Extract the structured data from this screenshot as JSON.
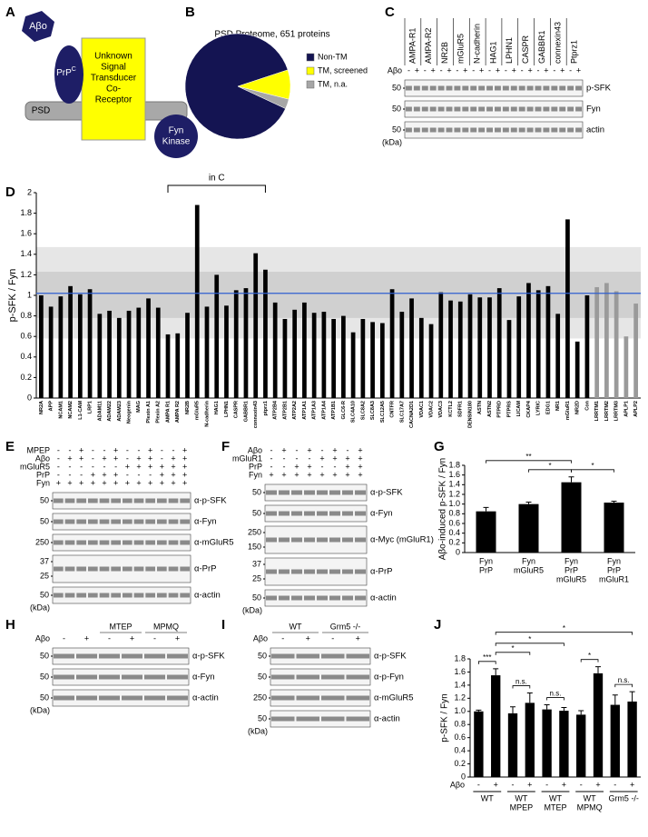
{
  "panel_labels": [
    "A",
    "B",
    "C",
    "D",
    "E",
    "F",
    "G",
    "H",
    "I",
    "J"
  ],
  "diagram": {
    "abo": "Aβo",
    "prp": "PrP",
    "prp_sup": "C",
    "receptor": [
      "Unknown",
      "Signal",
      "Transducer",
      "Co-",
      "Receptor"
    ],
    "psd": "PSD",
    "fyn": [
      "Fyn",
      "Kinase"
    ]
  },
  "chart_data": [
    {
      "type": "pie",
      "title": "PSD Proteome, 651 proteins",
      "categories": [
        "Non-TM",
        "TM, screened",
        "TM, n.a."
      ],
      "values": [
        88,
        9,
        3
      ],
      "colors": [
        "#141452",
        "#ffff00",
        "#a6a6a6"
      ]
    },
    {
      "type": "bar",
      "y_label": "p-SFK / Fyn",
      "categories": [
        "NR2A",
        "APP",
        "NCAM1",
        "NCAM2",
        "L1-CAM",
        "LRP1",
        "ADAM11",
        "ADAM22",
        "ADAM23",
        "Neogenin",
        "MAG",
        "Plexin A1",
        "Plexin A2",
        "AMPA R1",
        "AMPA R2",
        "NR2B",
        "mGluR5",
        "N-cadherin",
        "HAG1",
        "LPHN1",
        "CASPR",
        "GABBR1",
        "connexin43",
        "ptprz1",
        "ATP2B4",
        "ATP2B1",
        "ATP2A2",
        "ATP1A1",
        "ATP1A3",
        "ATP1A4",
        "ATP1B1",
        "GLC6-R",
        "SLC4A10",
        "SLC8A2",
        "SLC8A3",
        "SLC12A5",
        "CNTFR",
        "SLC17A7",
        "CACNA2D1",
        "VDAC1",
        "VDAC2",
        "VDAC3",
        "KCTL2",
        "SDFR1",
        "DENSIN180",
        "ASTN",
        "ASTN2",
        "PTPRD",
        "PTPRS",
        "LICAM",
        "CKAP4",
        "LYRIC",
        "EDG1",
        "NR1",
        "mGluR1",
        "NR2D",
        "Con",
        "LRRTM1",
        "LRRTM2",
        "LRRTM3",
        "APLP1",
        "APLP2"
      ],
      "values": [
        1.0,
        0.89,
        0.99,
        1.09,
        1.01,
        1.06,
        0.82,
        0.85,
        0.78,
        0.85,
        0.88,
        0.97,
        0.88,
        0.62,
        0.63,
        0.83,
        1.88,
        0.89,
        1.2,
        0.9,
        1.05,
        1.07,
        1.41,
        1.25,
        0.93,
        0.77,
        0.86,
        0.93,
        0.83,
        0.84,
        0.77,
        0.8,
        0.64,
        0.77,
        0.74,
        0.73,
        1.06,
        0.84,
        0.97,
        0.78,
        0.72,
        1.03,
        0.95,
        0.94,
        1.01,
        0.98,
        0.98,
        1.07,
        0.76,
        0.99,
        1.12,
        1.05,
        1.09,
        0.82,
        1.74,
        0.55,
        1.0,
        1.08,
        1.12,
        1.04,
        0.6,
        0.92
      ],
      "colors": [
        "#000000",
        "#000000",
        "#000000",
        "#000000",
        "#000000",
        "#000000",
        "#000000",
        "#000000",
        "#000000",
        "#000000",
        "#000000",
        "#000000",
        "#000000",
        "#000000",
        "#000000",
        "#000000",
        "#000000",
        "#000000",
        "#000000",
        "#000000",
        "#000000",
        "#000000",
        "#000000",
        "#000000",
        "#000000",
        "#000000",
        "#000000",
        "#000000",
        "#000000",
        "#000000",
        "#000000",
        "#000000",
        "#000000",
        "#000000",
        "#000000",
        "#000000",
        "#000000",
        "#000000",
        "#000000",
        "#000000",
        "#000000",
        "#000000",
        "#000000",
        "#000000",
        "#000000",
        "#000000",
        "#000000",
        "#000000",
        "#000000",
        "#000000",
        "#000000",
        "#000000",
        "#000000",
        "#000000",
        "#000000",
        "#000000",
        "#000000",
        "#9a9a9a",
        "#9a9a9a",
        "#9a9a9a",
        "#9a9a9a",
        "#9a9a9a"
      ],
      "ylim": [
        0,
        2
      ],
      "yticks": [
        0,
        0.2,
        0.4,
        0.6,
        0.8,
        1,
        1.2,
        1.4,
        1.6,
        1.8,
        2
      ],
      "bands": [
        {
          "from": 0.58,
          "to": 1.47,
          "color": "#e6e6e6"
        },
        {
          "from": 0.78,
          "to": 1.23,
          "color": "#d0d0d0"
        }
      ],
      "reference_line": 1.02,
      "reference_color": "#2f5fd0",
      "bracket": {
        "label": "in C",
        "from": "AMPA R1",
        "to": "ptprz1"
      }
    },
    {
      "type": "bar",
      "y_label": "Aβo-induced p-SFK / Fyn",
      "categories": [
        [
          "Fyn",
          "PrP"
        ],
        [
          "Fyn",
          "mGluR5"
        ],
        [
          "Fyn",
          "PrP",
          "mGluR5"
        ],
        [
          "Fyn",
          "PrP",
          "mGluR1"
        ]
      ],
      "values": [
        0.85,
        1.0,
        1.45,
        1.03
      ],
      "errors": [
        0.08,
        0.04,
        0.11,
        0.03
      ],
      "color": "#000000",
      "ylim": [
        0,
        1.8
      ],
      "yticks": [
        0,
        0.2,
        0.4,
        0.6,
        0.8,
        {
          "value": 1,
          "label": "1.0"
        },
        1.2,
        1.4,
        1.6,
        1.8
      ],
      "significance": [
        {
          "label": "**",
          "from": 0,
          "to": 2
        },
        {
          "label": "*",
          "from": 1,
          "to": 2
        },
        {
          "label": "*",
          "from": 2,
          "to": 3
        }
      ]
    },
    {
      "type": "bar",
      "y_label": "p-SFK / Fyn",
      "x_label": "Aβo",
      "categories": [
        "-",
        "+",
        "-",
        "+",
        "-",
        "+",
        "-",
        "+",
        "-",
        "+"
      ],
      "values": [
        1.0,
        1.55,
        0.97,
        1.13,
        1.03,
        1.01,
        0.95,
        1.58,
        1.1,
        1.15
      ],
      "errors": [
        0.02,
        0.1,
        0.1,
        0.15,
        0.07,
        0.05,
        0.06,
        0.1,
        0.15,
        0.15
      ],
      "color": "#000000",
      "group_labels": [
        [
          "WT"
        ],
        [
          "WT",
          "MPEP"
        ],
        [
          "WT",
          "MTEP"
        ],
        [
          "WT",
          "MPMQ"
        ],
        [
          "Grm5 -/-"
        ]
      ],
      "ylim": [
        0,
        1.8
      ],
      "yticks": [
        0,
        0.2,
        0.4,
        0.6,
        0.8,
        {
          "value": 1,
          "label": "1.0"
        },
        1.2,
        1.4,
        1.6,
        1.8
      ],
      "significance": [
        {
          "label": "***",
          "from": 0,
          "to": 1
        },
        {
          "label": "*",
          "from": 1,
          "to": 3
        },
        {
          "label": "*",
          "from": 1,
          "to": 5
        },
        {
          "label": "*",
          "from": 1,
          "to": 9
        },
        {
          "label": "*",
          "from": 6,
          "to": 7
        },
        {
          "label": "n.s.",
          "from": 2,
          "to": 3
        },
        {
          "label": "n.s.",
          "from": 4,
          "to": 5
        },
        {
          "label": "n.s.",
          "from": 8,
          "to": 9
        }
      ]
    }
  ],
  "blots": {
    "C": {
      "columns": [
        "AMPA-R1",
        "AMPA-R2",
        "NR2B",
        "mGluR5",
        "N-cadherin",
        "HAG1",
        "LPHN1",
        "CASPR",
        "GABBR1",
        "connexin43",
        "Ptprz1"
      ],
      "rows": [
        {
          "label": "Aβo",
          "signs": [
            "-",
            "+",
            "-",
            "+",
            "-",
            "+",
            "-",
            "+",
            "-",
            "+",
            "-",
            "+",
            "-",
            "+",
            "-",
            "+",
            "-",
            "+",
            "-",
            "+",
            "-",
            "+"
          ]
        }
      ],
      "strips": [
        {
          "label": "p-SFK",
          "markers": [
            "50"
          ]
        },
        {
          "label": "Fyn",
          "markers": [
            "50"
          ]
        },
        {
          "label": "actin",
          "markers": [
            "50"
          ]
        }
      ],
      "unit": "(kDa)"
    },
    "E": {
      "rows": [
        {
          "label": "MPEP",
          "signs": [
            "-",
            "-",
            "+",
            "-",
            "-",
            "+",
            "-",
            "-",
            "+",
            "-",
            "-",
            "+"
          ]
        },
        {
          "label": "Aβo",
          "signs": [
            "-",
            "+",
            "+",
            "-",
            "+",
            "+",
            "-",
            "+",
            "+",
            "-",
            "+",
            "+"
          ]
        },
        {
          "label": "mGluR5",
          "signs": [
            "-",
            "-",
            "-",
            "-",
            "-",
            "-",
            "+",
            "+",
            "+",
            "+",
            "+",
            "+"
          ]
        },
        {
          "label": "PrP",
          "signs": [
            "-",
            "-",
            "-",
            "+",
            "+",
            "+",
            "-",
            "-",
            "-",
            "+",
            "+",
            "+"
          ]
        },
        {
          "label": "Fyn",
          "signs": [
            "+",
            "+",
            "+",
            "+",
            "+",
            "+",
            "+",
            "+",
            "+",
            "+",
            "+",
            "+"
          ]
        }
      ],
      "strips": [
        {
          "label": "α-p-SFK",
          "markers": [
            "50"
          ]
        },
        {
          "label": "α-Fyn",
          "markers": [
            "50"
          ]
        },
        {
          "label": "α-mGluR5",
          "markers": [
            "250"
          ]
        },
        {
          "label": "α-PrP",
          "markers": [
            "37",
            "25"
          ]
        },
        {
          "label": "α-actin",
          "markers": [
            "50"
          ]
        }
      ],
      "unit": "(kDa)"
    },
    "F": {
      "rows": [
        {
          "label": "Aβo",
          "signs": [
            "-",
            "+",
            "-",
            "+",
            "-",
            "+",
            "-",
            "+"
          ]
        },
        {
          "label": "mGluR1",
          "signs": [
            "-",
            "-",
            "-",
            "-",
            "+",
            "+",
            "+",
            "+"
          ]
        },
        {
          "label": "PrP",
          "signs": [
            "-",
            "-",
            "+",
            "+",
            "-",
            "-",
            "+",
            "+"
          ]
        },
        {
          "label": "Fyn",
          "signs": [
            "+",
            "+",
            "+",
            "+",
            "+",
            "+",
            "+",
            "+"
          ]
        }
      ],
      "strips": [
        {
          "label": "α-p-SFK",
          "markers": [
            "50"
          ]
        },
        {
          "label": "α-Fyn",
          "markers": [
            "50"
          ]
        },
        {
          "label": "α-Myc (mGluR1)",
          "markers": [
            "250",
            "150"
          ]
        },
        {
          "label": "α-PrP",
          "markers": [
            "37",
            "25"
          ]
        },
        {
          "label": "α-actin",
          "markers": [
            "50"
          ]
        }
      ],
      "unit": "(kDa)"
    },
    "H": {
      "headers": [
        "MTEP",
        "MPMQ"
      ],
      "rows": [
        {
          "label": "Aβo",
          "signs": [
            "-",
            "+",
            "-",
            "+",
            "-",
            "+"
          ]
        }
      ],
      "strips": [
        {
          "label": "α-p-SFK",
          "markers": [
            "50"
          ]
        },
        {
          "label": "α-Fyn",
          "markers": [
            "50"
          ]
        },
        {
          "label": "α-actin",
          "markers": [
            "50"
          ]
        }
      ],
      "unit": "(kDa)"
    },
    "I": {
      "headers": [
        "WT",
        "Grm5 -/-"
      ],
      "rows": [
        {
          "label": "Aβo",
          "signs": [
            "-",
            "+",
            "-",
            "+"
          ]
        }
      ],
      "strips": [
        {
          "label": "α-p-SFK",
          "markers": [
            "50"
          ]
        },
        {
          "label": "α-p-Fyn",
          "markers": [
            "50"
          ]
        },
        {
          "label": "α-mGluR5",
          "markers": [
            "250"
          ]
        },
        {
          "label": "α-actin",
          "markers": [
            "50"
          ]
        }
      ],
      "unit": "(kDa)"
    }
  }
}
